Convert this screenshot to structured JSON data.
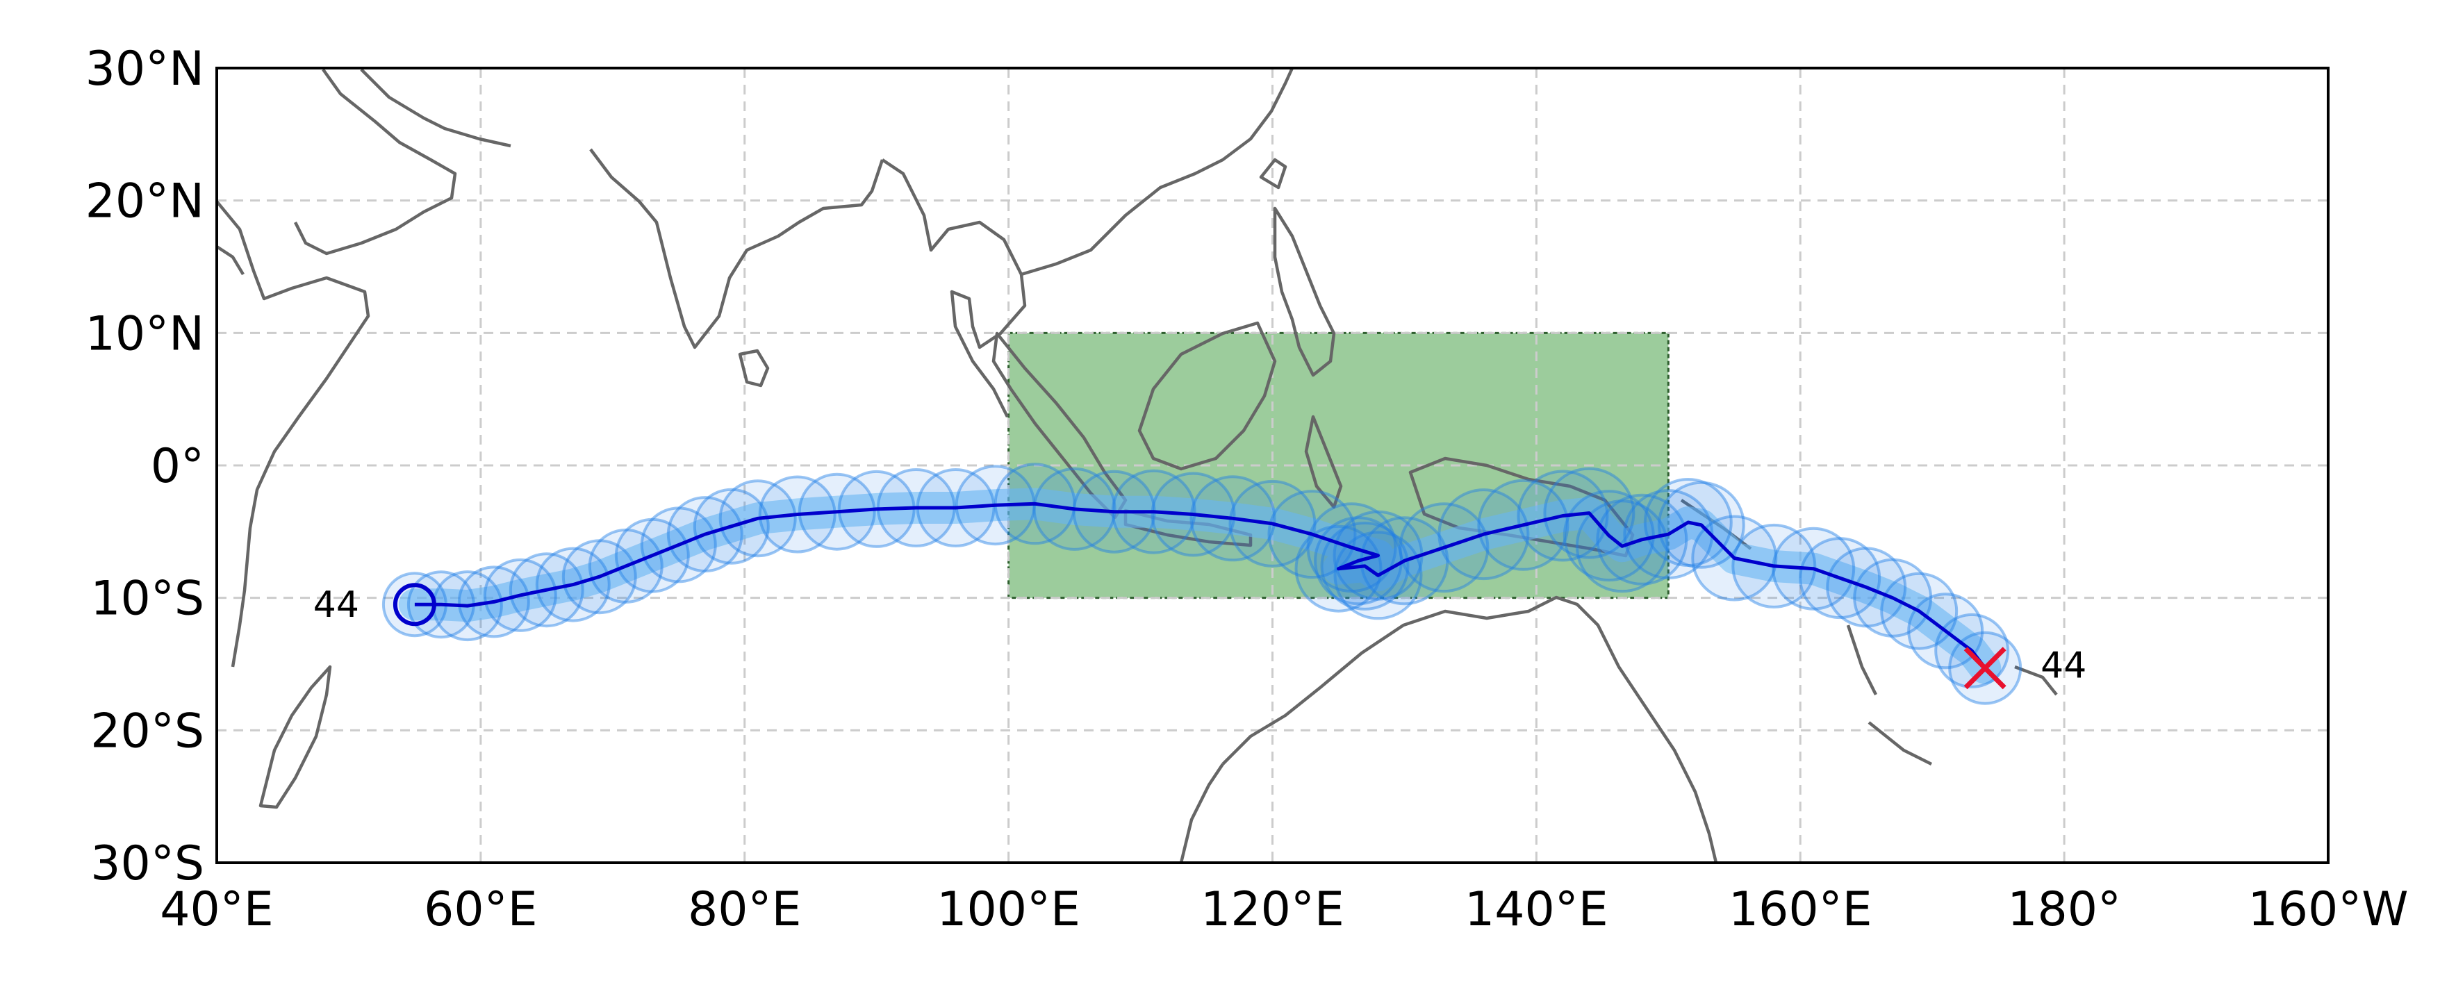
{
  "map": {
    "projection": "PlateCarree",
    "extent": {
      "lon": [
        40,
        200
      ],
      "lat": [
        -30,
        30
      ]
    },
    "grid": "dashed",
    "x_ticks": [
      {
        "lon": 40,
        "label": "40°E"
      },
      {
        "lon": 60,
        "label": "60°E"
      },
      {
        "lon": 80,
        "label": "80°E"
      },
      {
        "lon": 100,
        "label": "100°E"
      },
      {
        "lon": 120,
        "label": "120°E"
      },
      {
        "lon": 140,
        "label": "140°E"
      },
      {
        "lon": 160,
        "label": "160°E"
      },
      {
        "lon": 180,
        "label": "180°"
      },
      {
        "lon": 200,
        "label": "160°W"
      }
    ],
    "y_ticks": [
      {
        "lat": 30,
        "label": "30°N"
      },
      {
        "lat": 20,
        "label": "20°N"
      },
      {
        "lat": 10,
        "label": "10°N"
      },
      {
        "lat": 0,
        "label": "0°"
      },
      {
        "lat": -10,
        "label": "10°S"
      },
      {
        "lat": -20,
        "label": "20°S"
      },
      {
        "lat": -30,
        "label": "30°S"
      }
    ],
    "region_box": {
      "lon": [
        100,
        150
      ],
      "lat": [
        -10,
        10
      ],
      "color": "#3a9a3a"
    },
    "colors": {
      "track": "#0000cc",
      "track_band": "#7fc8f8",
      "circles": "#1e7fe6",
      "coast": "#666666",
      "end_marker": "#e8112d"
    }
  },
  "track": {
    "start_label": "44",
    "end_label": "44",
    "points": [
      [
        55,
        -10.5
      ],
      [
        57,
        -10.5
      ],
      [
        59,
        -10.6
      ],
      [
        61,
        -10.3
      ],
      [
        63,
        -9.8
      ],
      [
        65,
        -9.4
      ],
      [
        67,
        -9.0
      ],
      [
        69,
        -8.4
      ],
      [
        71,
        -7.6
      ],
      [
        73,
        -6.8
      ],
      [
        75,
        -6.0
      ],
      [
        77,
        -5.2
      ],
      [
        79,
        -4.6
      ],
      [
        81,
        -4.0
      ],
      [
        84,
        -3.7
      ],
      [
        87,
        -3.5
      ],
      [
        90,
        -3.3
      ],
      [
        93,
        -3.2
      ],
      [
        96,
        -3.2
      ],
      [
        99,
        -3.0
      ],
      [
        102,
        -2.9
      ],
      [
        105,
        -3.3
      ],
      [
        108,
        -3.5
      ],
      [
        111,
        -3.5
      ],
      [
        114,
        -3.7
      ],
      [
        117,
        -4.0
      ],
      [
        120,
        -4.4
      ],
      [
        123,
        -5.2
      ],
      [
        126,
        -6.2
      ],
      [
        128,
        -6.8
      ],
      [
        126.5,
        -7.2
      ],
      [
        125,
        -7.8
      ],
      [
        127,
        -7.6
      ],
      [
        128,
        -8.3
      ],
      [
        130,
        -7.2
      ],
      [
        133,
        -6.2
      ],
      [
        136,
        -5.2
      ],
      [
        139,
        -4.5
      ],
      [
        142,
        -3.8
      ],
      [
        144,
        -3.6
      ],
      [
        145.5,
        -5.3
      ],
      [
        146.5,
        -6.1
      ],
      [
        148,
        -5.6
      ],
      [
        150,
        -5.2
      ],
      [
        151.5,
        -4.3
      ],
      [
        152.5,
        -4.5
      ],
      [
        155,
        -7.0
      ],
      [
        158,
        -7.6
      ],
      [
        161,
        -7.8
      ],
      [
        163,
        -8.5
      ],
      [
        165,
        -9.2
      ],
      [
        167,
        -10.0
      ],
      [
        169,
        -11.0
      ],
      [
        171,
        -12.5
      ],
      [
        173,
        -14.0
      ],
      [
        174,
        -15.3
      ]
    ],
    "circle_radii": [
      45,
      47,
      49,
      50,
      51,
      52,
      52,
      52,
      52,
      52,
      53,
      53,
      53,
      54,
      54,
      54,
      54,
      55,
      55,
      56,
      57,
      58,
      58,
      59,
      59,
      60,
      61,
      62,
      63,
      63,
      62,
      61,
      62,
      62,
      62,
      63,
      64,
      64,
      64,
      64,
      64,
      65,
      64,
      63,
      62,
      61,
      60,
      59,
      58,
      57,
      56,
      55,
      54,
      53,
      52,
      51
    ]
  }
}
